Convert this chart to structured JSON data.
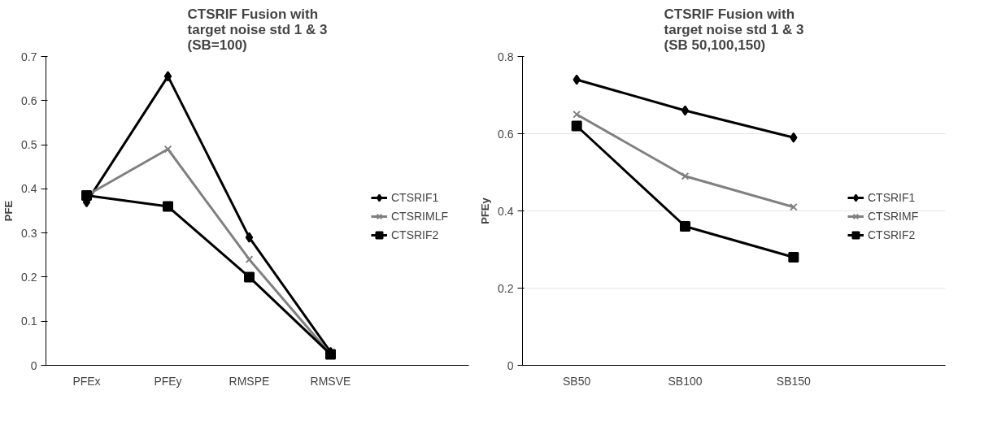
{
  "chart_data": [
    {
      "type": "line",
      "title": "CTSRIF Fusion with\ntarget noise std 1 & 3\n(SB=100)",
      "ylabel": "PFE",
      "categories": [
        "PFEx",
        "PFEy",
        "RMSPE",
        "RMSVE"
      ],
      "ylim": [
        0,
        0.7
      ],
      "yticks": [
        0,
        0.1,
        0.2,
        0.3,
        0.4,
        0.5,
        0.6,
        0.7
      ],
      "grid": false,
      "legend": "right",
      "series": [
        {
          "name": "CTSRIF1",
          "color": "#000000",
          "marker": "diamond",
          "values": [
            0.37,
            0.655,
            0.29,
            0.03
          ]
        },
        {
          "name": "CTSRIMLF",
          "color": "#808080",
          "marker": "cross",
          "values": [
            0.385,
            0.49,
            0.24,
            0.025
          ]
        },
        {
          "name": "CTSRIF2",
          "color": "#000000",
          "marker": "square",
          "values": [
            0.385,
            0.36,
            0.2,
            0.025
          ]
        }
      ]
    },
    {
      "type": "line",
      "title": "CTSRIF Fusion with\ntarget noise std 1 & 3\n(SB  50,100,150)",
      "ylabel": "PFEy",
      "categories": [
        "SB50",
        "SB100",
        "SB150"
      ],
      "ylim": [
        0,
        0.8
      ],
      "yticks": [
        0,
        0.2,
        0.4,
        0.6,
        0.8
      ],
      "grid": "y",
      "legend": "right",
      "series": [
        {
          "name": "CTSRIF1",
          "color": "#000000",
          "marker": "diamond",
          "values": [
            0.74,
            0.66,
            0.59
          ]
        },
        {
          "name": "CTSRIMF",
          "color": "#808080",
          "marker": "cross",
          "values": [
            0.65,
            0.49,
            0.41
          ]
        },
        {
          "name": "CTSRIF2",
          "color": "#000000",
          "marker": "square",
          "values": [
            0.62,
            0.36,
            0.28
          ]
        }
      ]
    }
  ]
}
